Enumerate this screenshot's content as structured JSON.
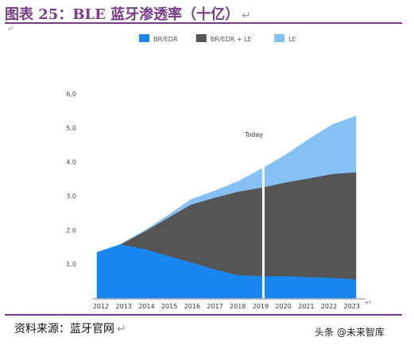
{
  "figure": {
    "title": "图表 25：BLE 蓝牙渗透率（十亿）",
    "source": "资料来源：蓝牙官网",
    "watermark": "头条 @未来智库",
    "small_mark": "↵"
  },
  "chart_data": {
    "type": "area",
    "stacked": true,
    "x": [
      "2012",
      "2013",
      "2014",
      "2015",
      "2016",
      "2017",
      "2018",
      "2019",
      "2020",
      "2021",
      "2022",
      "2023"
    ],
    "series": [
      {
        "name": "BR/EDR",
        "color": "#1a86f0",
        "values": [
          1.35,
          1.58,
          1.45,
          1.25,
          1.05,
          0.85,
          0.68,
          0.65,
          0.65,
          0.62,
          0.6,
          0.55
        ]
      },
      {
        "name": "BR/EDR + LE",
        "color": "#555555",
        "values": [
          0.0,
          0.0,
          0.5,
          1.1,
          1.7,
          2.1,
          2.45,
          2.6,
          2.75,
          2.9,
          3.05,
          3.15
        ]
      },
      {
        "name": "LE",
        "color": "#85c1f5",
        "values": [
          0.0,
          0.0,
          0.03,
          0.07,
          0.15,
          0.2,
          0.3,
          0.55,
          0.8,
          1.15,
          1.45,
          1.65
        ]
      }
    ],
    "yticks": [
      "1.0",
      "2.0",
      "3.0",
      "4.0",
      "5.0",
      "6.0"
    ],
    "ylim": [
      0,
      6.0
    ],
    "annotation": {
      "label": "Today",
      "x": "2019"
    },
    "legend_position": "top",
    "grid": false
  }
}
